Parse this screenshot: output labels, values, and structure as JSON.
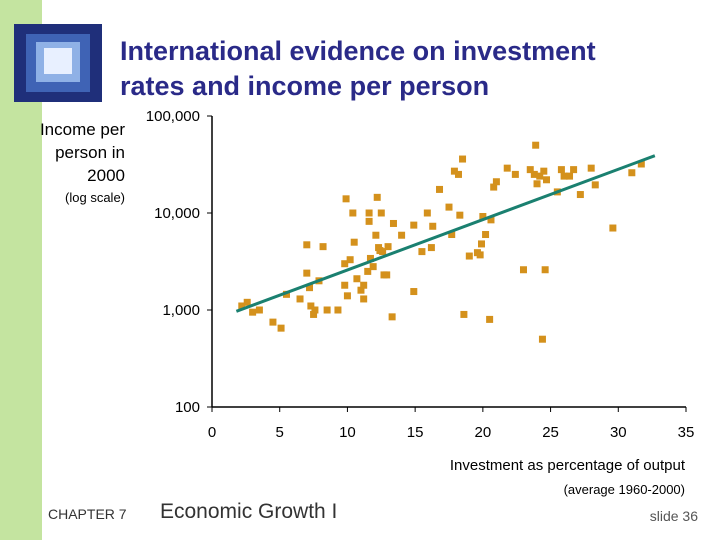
{
  "title_lines": [
    "International evidence on investment",
    "rates and income per person"
  ],
  "ylabel": {
    "lines": [
      "Income per",
      "person in",
      "2000"
    ],
    "sub": "(log scale)"
  },
  "xlabel": "Investment as percentage of output",
  "xlabel_sub": "(average 1960-2000)",
  "footer": {
    "chapter": "CHAPTER 7",
    "title": "Economic Growth I",
    "slide": "slide 36"
  },
  "colors": {
    "marker": "#d4911c",
    "trend": "#1a8070",
    "title": "#2a2a88",
    "side_bar": "#c4e4a0"
  },
  "chart_data": {
    "type": "scatter",
    "xlabel": "Investment as percentage of output",
    "ylabel": "Income per person in 2000",
    "x_ticks": [
      0,
      5,
      10,
      15,
      20,
      25,
      30,
      35
    ],
    "x_tick_labels": [
      "0",
      "5",
      "10",
      "15",
      "20",
      "25",
      "30",
      "35"
    ],
    "y_ticks": [
      100,
      1000,
      10000,
      100000
    ],
    "y_tick_labels": [
      "100",
      "1,000",
      "10,000",
      "100,000"
    ],
    "xlim": [
      0,
      35
    ],
    "ylim": [
      100,
      100000
    ],
    "y_scale": "log",
    "grid": false,
    "points": [
      [
        2.2,
        1100
      ],
      [
        2.6,
        1200
      ],
      [
        3.0,
        950
      ],
      [
        3.5,
        1000
      ],
      [
        4.5,
        750
      ],
      [
        5.1,
        650
      ],
      [
        5.5,
        1450
      ],
      [
        6.5,
        1300
      ],
      [
        7.0,
        2400
      ],
      [
        7.2,
        1700
      ],
      [
        7.0,
        4700
      ],
      [
        7.3,
        1100
      ],
      [
        7.5,
        900
      ],
      [
        7.6,
        1000
      ],
      [
        7.9,
        2000
      ],
      [
        8.2,
        4500
      ],
      [
        8.5,
        1000
      ],
      [
        9.3,
        1000
      ],
      [
        9.8,
        3000
      ],
      [
        9.8,
        1800
      ],
      [
        9.9,
        14000
      ],
      [
        10.0,
        1400
      ],
      [
        10.2,
        3300
      ],
      [
        10.4,
        10000
      ],
      [
        10.5,
        5000
      ],
      [
        10.7,
        2100
      ],
      [
        11.0,
        1600
      ],
      [
        11.2,
        1300
      ],
      [
        11.2,
        1800
      ],
      [
        11.5,
        2500
      ],
      [
        11.6,
        10000
      ],
      [
        11.6,
        8200
      ],
      [
        11.7,
        3400
      ],
      [
        11.9,
        2800
      ],
      [
        12.1,
        5900
      ],
      [
        12.2,
        14500
      ],
      [
        12.3,
        4400
      ],
      [
        12.4,
        4100
      ],
      [
        12.5,
        10000
      ],
      [
        12.6,
        4000
      ],
      [
        12.7,
        2300
      ],
      [
        12.9,
        2300
      ],
      [
        13.0,
        4500
      ],
      [
        13.3,
        850
      ],
      [
        13.4,
        7800
      ],
      [
        14.0,
        5900
      ],
      [
        14.9,
        1550
      ],
      [
        14.9,
        7500
      ],
      [
        15.5,
        4000
      ],
      [
        15.9,
        10000
      ],
      [
        16.2,
        4400
      ],
      [
        16.3,
        7300
      ],
      [
        16.8,
        17500
      ],
      [
        17.5,
        11500
      ],
      [
        17.7,
        6000
      ],
      [
        17.9,
        27000
      ],
      [
        18.2,
        25000
      ],
      [
        18.3,
        9500
      ],
      [
        18.5,
        36000
      ],
      [
        18.6,
        900
      ],
      [
        19.0,
        3600
      ],
      [
        19.6,
        3900
      ],
      [
        19.8,
        3700
      ],
      [
        19.9,
        4800
      ],
      [
        20.0,
        9200
      ],
      [
        20.2,
        6000
      ],
      [
        20.5,
        800
      ],
      [
        20.6,
        8500
      ],
      [
        20.8,
        18500
      ],
      [
        21.0,
        21000
      ],
      [
        21.8,
        29000
      ],
      [
        22.4,
        25000
      ],
      [
        23.0,
        2600
      ],
      [
        23.5,
        28000
      ],
      [
        23.8,
        25000
      ],
      [
        23.9,
        50000
      ],
      [
        24.0,
        20000
      ],
      [
        24.2,
        24000
      ],
      [
        24.4,
        500
      ],
      [
        24.5,
        27000
      ],
      [
        24.6,
        2600
      ],
      [
        24.7,
        22000
      ],
      [
        25.5,
        16500
      ],
      [
        25.8,
        28000
      ],
      [
        26.0,
        24000
      ],
      [
        26.4,
        24000
      ],
      [
        26.7,
        28000
      ],
      [
        27.2,
        15500
      ],
      [
        28.0,
        29000
      ],
      [
        28.3,
        19500
      ],
      [
        29.6,
        7000
      ],
      [
        31.0,
        26000
      ],
      [
        31.7,
        32000
      ]
    ],
    "trend_line": {
      "x": [
        1.8,
        32.7
      ],
      "y": [
        970,
        39000
      ]
    }
  }
}
